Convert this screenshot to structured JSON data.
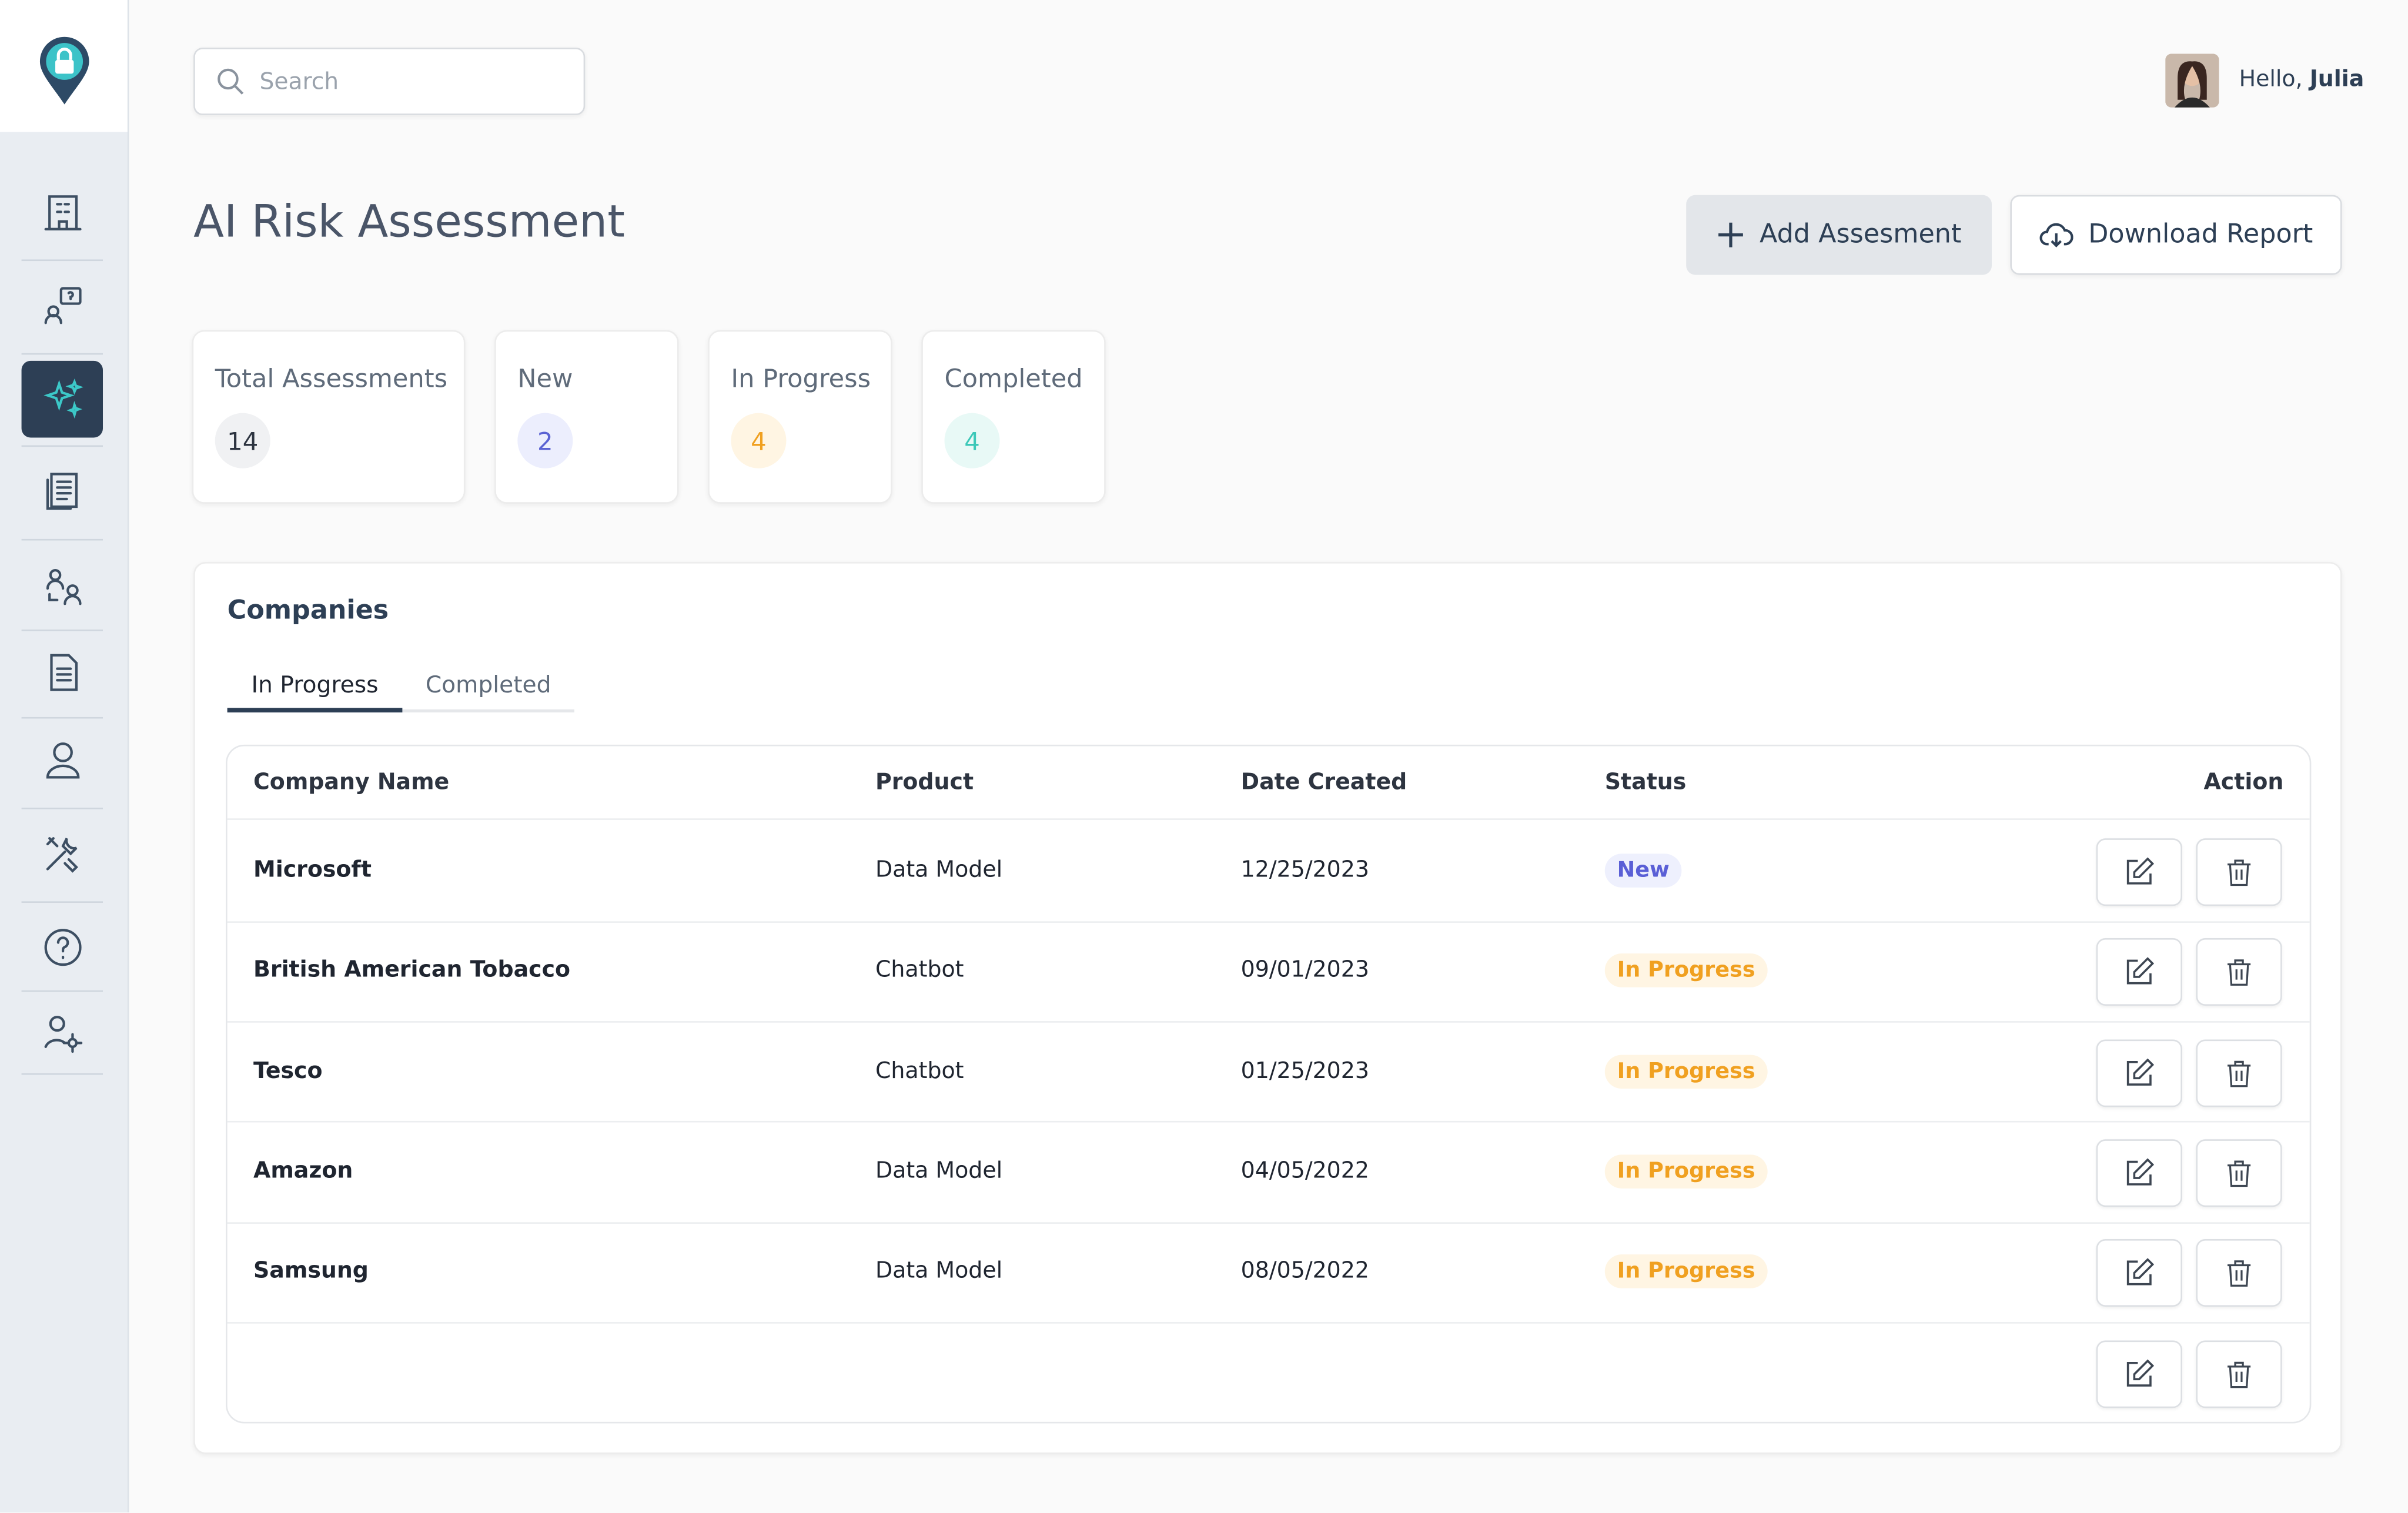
{
  "search": {
    "placeholder": "Search"
  },
  "user": {
    "greeting": "Hello,",
    "name": "Julia"
  },
  "header": {
    "title": "AI Risk Assessment"
  },
  "buttons": [
    "Add Assesment",
    "Download Report"
  ],
  "stats": [
    {
      "label": "Total Assessments",
      "value": 14
    },
    {
      "label": "New",
      "value": 2
    },
    {
      "label": "In Progress",
      "value": 4
    },
    {
      "label": "Completed",
      "value": 4
    }
  ],
  "panel": {
    "title": "Companies",
    "tabs": [
      "In Progress",
      "Completed"
    ]
  },
  "table": {
    "columns": [
      "Company Name",
      "Product",
      "Date Created",
      "Status",
      "Action"
    ],
    "rows": [
      [
        "Microsoft",
        "Data Model",
        "12/25/2023",
        "New"
      ],
      [
        "British American Tobacco",
        "Chatbot",
        "09/01/2023",
        "In Progress"
      ],
      [
        "Tesco",
        "Chatbot",
        "01/25/2023",
        "In Progress"
      ],
      [
        "Amazon",
        "Data Model",
        "04/05/2022",
        "In Progress"
      ],
      [
        "Samsung",
        "Data Model",
        "08/05/2022",
        "In Progress"
      ]
    ]
  }
}
